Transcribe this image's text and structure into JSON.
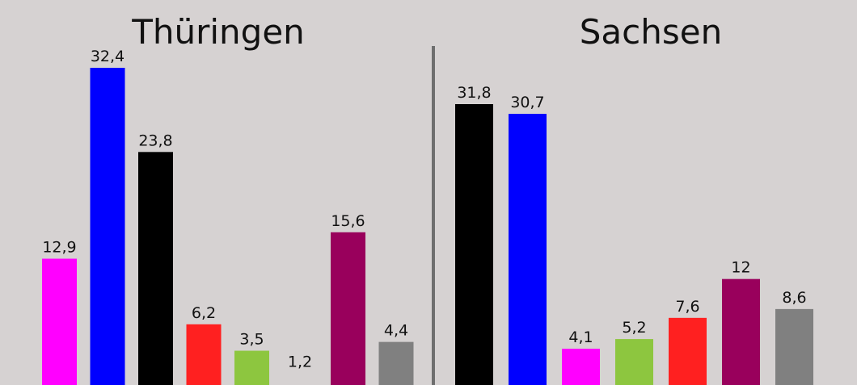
{
  "chart_data": [
    {
      "type": "bar",
      "title": "Thüringen",
      "categories": [
        null,
        null,
        null,
        null,
        null,
        null,
        null,
        null
      ],
      "values": [
        12.9,
        32.4,
        23.8,
        6.2,
        3.5,
        1.2,
        15.6,
        4.4
      ],
      "value_labels": [
        "12,9",
        "32,4",
        "23,8",
        "6,2",
        "3,5",
        "1,2",
        "15,6",
        "4,4"
      ],
      "colors": [
        "#ff00ff",
        "#0000ff",
        "#000000",
        "#ff2020",
        "#8dc63f",
        "#d6d2d2",
        "#99005c",
        "#808080"
      ]
    },
    {
      "type": "bar",
      "title": "Sachsen",
      "categories": [
        null,
        null,
        null,
        null,
        null,
        null,
        null
      ],
      "values": [
        31.8,
        30.7,
        4.1,
        5.2,
        7.6,
        12,
        8.6
      ],
      "value_labels": [
        "31,8",
        "30,7",
        "4,1",
        "5,2",
        "7,6",
        "12",
        "8,6"
      ],
      "colors": [
        "#000000",
        "#0000ff",
        "#ff00ff",
        "#8dc63f",
        "#ff2020",
        "#99005c",
        "#808080"
      ]
    }
  ]
}
